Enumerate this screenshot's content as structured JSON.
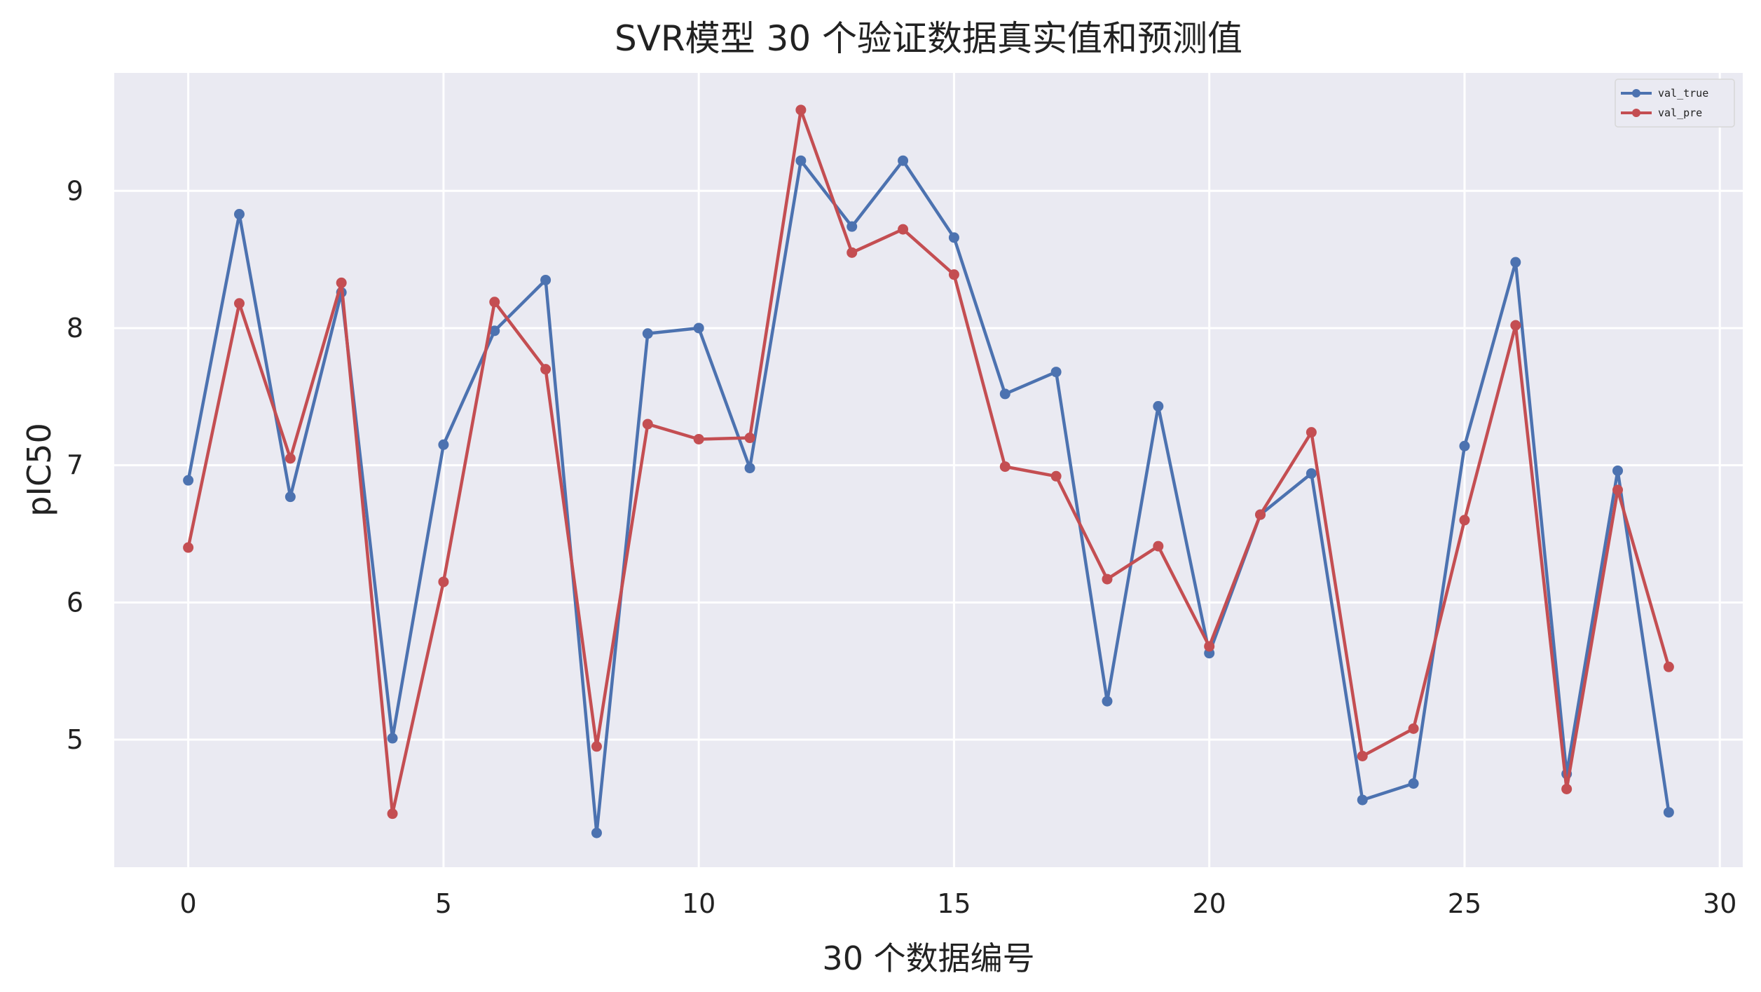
{
  "chart_data": {
    "type": "line",
    "title": "SVR模型 30 个验证数据真实值和预测值",
    "xlabel": "30 个数据编号",
    "ylabel": "pIC50",
    "xlim": [
      -1.45,
      30.45
    ],
    "ylim": [
      4.07,
      9.86
    ],
    "xticks": [
      0,
      5,
      10,
      15,
      20,
      25,
      30
    ],
    "yticks": [
      5,
      6,
      7,
      8,
      9
    ],
    "grid": true,
    "legend_position": "top-right",
    "background_color": "#eaeaf2",
    "grid_color": "#ffffff",
    "x": [
      0,
      1,
      2,
      3,
      4,
      5,
      6,
      7,
      8,
      9,
      10,
      11,
      12,
      13,
      14,
      15,
      16,
      17,
      18,
      19,
      20,
      21,
      22,
      23,
      24,
      25,
      26,
      27,
      28,
      29
    ],
    "series": [
      {
        "name": "val_true",
        "color": "#4c72b0",
        "values": [
          6.89,
          8.83,
          6.77,
          8.26,
          5.01,
          7.15,
          7.98,
          8.35,
          4.32,
          7.96,
          8.0,
          6.98,
          9.22,
          8.74,
          9.22,
          8.66,
          7.52,
          7.68,
          5.28,
          7.43,
          5.63,
          6.64,
          6.94,
          4.56,
          4.68,
          7.14,
          8.48,
          4.75,
          6.96,
          4.47
        ]
      },
      {
        "name": "val_pre",
        "color": "#c44e52",
        "values": [
          6.4,
          8.18,
          7.05,
          8.33,
          4.46,
          6.15,
          8.19,
          7.7,
          4.95,
          7.3,
          7.19,
          7.2,
          9.59,
          8.55,
          8.72,
          8.39,
          6.99,
          6.92,
          6.17,
          6.41,
          5.68,
          6.64,
          7.24,
          4.88,
          5.08,
          6.6,
          8.02,
          4.64,
          6.82,
          5.53
        ]
      }
    ]
  }
}
